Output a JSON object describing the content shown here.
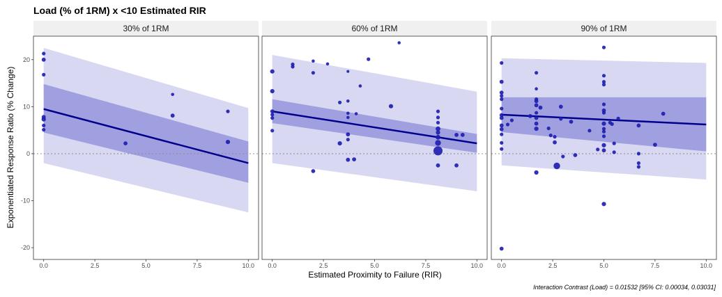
{
  "title": "Load (% of 1RM) x <10 Estimated RIR",
  "xlabel": "Estimated Proximity to Failure (RIR)",
  "ylabel": "Exponentiated Response Ratio (% Change)",
  "caption": "Interaction Contrast (Load) = 0.01532 [95% CI: 0.00034, 0.03031]",
  "colors": {
    "line": "#00008b",
    "points": "#1c1cb0",
    "band_inner": "#a0a0e0",
    "band_outer": "#d8d8f2",
    "strip_bg": "#f0f0f0",
    "zero_line": "#8c8c8c"
  },
  "chart_data": {
    "type": "scatter",
    "xlim": [
      -0.5,
      10.5
    ],
    "ylim": [
      -22.5,
      25
    ],
    "x_ticks": [
      0,
      2.5,
      5,
      7.5,
      10
    ],
    "x_tick_labels": [
      "0.0",
      "2.5",
      "5.0",
      "7.5",
      "10.0"
    ],
    "y_ticks": [
      20,
      10,
      0,
      -10,
      -20
    ],
    "y_tick_labels": [
      "20",
      "10",
      "0",
      "-10",
      "-20"
    ],
    "reference_line_y": 0,
    "panels": [
      {
        "strip": "30% of 1RM",
        "line": [
          [
            0,
            9.5
          ],
          [
            10,
            -2
          ]
        ],
        "inner_band": {
          "lower": [
            [
              0,
              4.5
            ],
            [
              10,
              -6.2
            ]
          ],
          "upper": [
            [
              0,
              14.8
            ],
            [
              10,
              2.6
            ]
          ]
        },
        "outer_band": {
          "lower": [
            [
              0,
              -2
            ],
            [
              10,
              -12.5
            ]
          ],
          "upper": [
            [
              0,
              22.5
            ],
            [
              10,
              9.7
            ]
          ]
        },
        "points": [
          {
            "x": 0,
            "y": 21.3,
            "s": 1
          },
          {
            "x": 0,
            "y": 20,
            "s": 1.1
          },
          {
            "x": 0,
            "y": 16.8,
            "s": 1
          },
          {
            "x": 0,
            "y": 7.8,
            "s": 1.1
          },
          {
            "x": 0,
            "y": 7.3,
            "s": 1.2
          },
          {
            "x": 0,
            "y": 6,
            "s": 1
          },
          {
            "x": 0,
            "y": 5.1,
            "s": 1
          },
          {
            "x": 4,
            "y": 2.2,
            "s": 1.1
          },
          {
            "x": 6.3,
            "y": 12.6,
            "s": 0.9
          },
          {
            "x": 6.3,
            "y": 8.1,
            "s": 1.1
          },
          {
            "x": 9,
            "y": 9,
            "s": 1
          },
          {
            "x": 9,
            "y": 2.5,
            "s": 1.2
          }
        ]
      },
      {
        "strip": "60% of 1RM",
        "line": [
          [
            0,
            9
          ],
          [
            10,
            2.2
          ]
        ],
        "inner_band": {
          "lower": [
            [
              0,
              6.5
            ],
            [
              10,
              0.2
            ]
          ],
          "upper": [
            [
              0,
              11.6
            ],
            [
              10,
              4.2
            ]
          ]
        },
        "outer_band": {
          "lower": [
            [
              0,
              -2
            ],
            [
              10,
              -8
            ]
          ],
          "upper": [
            [
              0,
              21
            ],
            [
              10,
              13.2
            ]
          ]
        },
        "points": [
          {
            "x": 0,
            "y": 17.5,
            "s": 1.2
          },
          {
            "x": 0,
            "y": 13.3,
            "s": 1.2
          },
          {
            "x": 0,
            "y": 9,
            "s": 1.1
          },
          {
            "x": 0,
            "y": 8.3,
            "s": 1
          },
          {
            "x": 0,
            "y": 7.6,
            "s": 1
          },
          {
            "x": 0,
            "y": 4.9,
            "s": 1
          },
          {
            "x": 1,
            "y": 19,
            "s": 1
          },
          {
            "x": 1,
            "y": 18.5,
            "s": 1
          },
          {
            "x": 2,
            "y": 19.7,
            "s": 0.9
          },
          {
            "x": 2,
            "y": 17.2,
            "s": 1
          },
          {
            "x": 2,
            "y": -3.7,
            "s": 1.1
          },
          {
            "x": 2.7,
            "y": 19.1,
            "s": 0.9
          },
          {
            "x": 3.3,
            "y": 10.9,
            "s": 1
          },
          {
            "x": 3.3,
            "y": 2.2,
            "s": 1.2
          },
          {
            "x": 3.7,
            "y": 17.5,
            "s": 0.8
          },
          {
            "x": 3.7,
            "y": 11.2,
            "s": 0.9
          },
          {
            "x": 3.7,
            "y": 8.6,
            "s": 0.9
          },
          {
            "x": 3.7,
            "y": 7.7,
            "s": 0.9
          },
          {
            "x": 3.7,
            "y": 4.1,
            "s": 1.1
          },
          {
            "x": 3.7,
            "y": 3,
            "s": 1
          },
          {
            "x": 3.7,
            "y": -1.3,
            "s": 1.1
          },
          {
            "x": 4,
            "y": -1.2,
            "s": 1.1
          },
          {
            "x": 4.1,
            "y": 8.5,
            "s": 0.9
          },
          {
            "x": 4.3,
            "y": 14.4,
            "s": 0.9
          },
          {
            "x": 4.7,
            "y": 20.1,
            "s": 1
          },
          {
            "x": 5.8,
            "y": 10.1,
            "s": 1.2
          },
          {
            "x": 6.2,
            "y": 23.6,
            "s": 0.9
          },
          {
            "x": 8.1,
            "y": 9,
            "s": 1
          },
          {
            "x": 8.1,
            "y": 7.7,
            "s": 1
          },
          {
            "x": 8.1,
            "y": 6.6,
            "s": 1
          },
          {
            "x": 8.1,
            "y": 5.3,
            "s": 1.3
          },
          {
            "x": 8.1,
            "y": 4.5,
            "s": 1.2
          },
          {
            "x": 8.1,
            "y": 3.5,
            "s": 1.3
          },
          {
            "x": 8.1,
            "y": 2.3,
            "s": 1.6
          },
          {
            "x": 8.1,
            "y": 0.6,
            "s": 2.5
          },
          {
            "x": 8.1,
            "y": -2.5,
            "s": 1.1
          },
          {
            "x": 9,
            "y": 4,
            "s": 1.1
          },
          {
            "x": 9.3,
            "y": 4,
            "s": 1.1
          },
          {
            "x": 9,
            "y": -2.5,
            "s": 1.1
          }
        ]
      },
      {
        "strip": "90% of 1RM",
        "line": [
          [
            0,
            8.3
          ],
          [
            10,
            6.2
          ]
        ],
        "inner_band": {
          "lower": [
            [
              0,
              4.6
            ],
            [
              10,
              0.5
            ]
          ],
          "upper": [
            [
              0,
              12
            ],
            [
              10,
              12
            ]
          ]
        },
        "outer_band": {
          "lower": [
            [
              0,
              -2.5
            ],
            [
              10,
              -5.5
            ]
          ],
          "upper": [
            [
              0,
              20.3
            ],
            [
              10,
              19.3
            ]
          ]
        },
        "points": [
          {
            "x": 0,
            "y": 19.3,
            "s": 1
          },
          {
            "x": 0,
            "y": 15.3,
            "s": 1.1
          },
          {
            "x": 0,
            "y": 13,
            "s": 1.1
          },
          {
            "x": 0,
            "y": 12.3,
            "s": 1
          },
          {
            "x": 0,
            "y": 11.6,
            "s": 1
          },
          {
            "x": 0,
            "y": 9.6,
            "s": 1
          },
          {
            "x": 0,
            "y": 8.2,
            "s": 1.1
          },
          {
            "x": 0,
            "y": 7.6,
            "s": 1.1
          },
          {
            "x": 0,
            "y": 6,
            "s": 1.1
          },
          {
            "x": 0,
            "y": 5.2,
            "s": 1.1
          },
          {
            "x": 0,
            "y": 4.1,
            "s": 1
          },
          {
            "x": 0,
            "y": 2.3,
            "s": 1
          },
          {
            "x": 0,
            "y": 1,
            "s": 1
          },
          {
            "x": 0,
            "y": -20.2,
            "s": 1.1
          },
          {
            "x": 0.3,
            "y": 6.2,
            "s": 1
          },
          {
            "x": 0.5,
            "y": 7.1,
            "s": 1
          },
          {
            "x": 1.4,
            "y": 8,
            "s": 1.1
          },
          {
            "x": 1.7,
            "y": 17.2,
            "s": 1
          },
          {
            "x": 1.7,
            "y": 13.8,
            "s": 0.9
          },
          {
            "x": 1.7,
            "y": 11.6,
            "s": 1
          },
          {
            "x": 1.7,
            "y": 11.2,
            "s": 1.1
          },
          {
            "x": 1.7,
            "y": 10.3,
            "s": 1.1
          },
          {
            "x": 1.7,
            "y": 8.7,
            "s": 1
          },
          {
            "x": 1.7,
            "y": 7.6,
            "s": 1.1
          },
          {
            "x": 1.7,
            "y": 6.4,
            "s": 1.1
          },
          {
            "x": 1.7,
            "y": 5.3,
            "s": 1.2
          },
          {
            "x": 1.7,
            "y": -4,
            "s": 1.2
          },
          {
            "x": 1.9,
            "y": 9.8,
            "s": 1.1
          },
          {
            "x": 2.3,
            "y": 5.4,
            "s": 1
          },
          {
            "x": 2.4,
            "y": 3.9,
            "s": 1
          },
          {
            "x": 2.6,
            "y": 3.6,
            "s": 1
          },
          {
            "x": 2.6,
            "y": 2.4,
            "s": 1.1
          },
          {
            "x": 2.7,
            "y": -2.6,
            "s": 1.8
          },
          {
            "x": 2.9,
            "y": 10,
            "s": 1.1
          },
          {
            "x": 2.9,
            "y": 7.4,
            "s": 1
          },
          {
            "x": 3,
            "y": -0.6,
            "s": 1
          },
          {
            "x": 3.4,
            "y": 6.8,
            "s": 1.1
          },
          {
            "x": 3.6,
            "y": -0.3,
            "s": 1.1
          },
          {
            "x": 4.3,
            "y": 4.9,
            "s": 1
          },
          {
            "x": 4.7,
            "y": 0.9,
            "s": 1
          },
          {
            "x": 5,
            "y": 22.6,
            "s": 1
          },
          {
            "x": 5,
            "y": 16.6,
            "s": 1
          },
          {
            "x": 5,
            "y": 15.3,
            "s": 1
          },
          {
            "x": 5,
            "y": 14.7,
            "s": 1
          },
          {
            "x": 5,
            "y": 10.5,
            "s": 1
          },
          {
            "x": 5,
            "y": 9.2,
            "s": 1.1
          },
          {
            "x": 5,
            "y": 8.7,
            "s": 1
          },
          {
            "x": 5,
            "y": 6.4,
            "s": 1.2
          },
          {
            "x": 5,
            "y": 5.3,
            "s": 1
          },
          {
            "x": 5,
            "y": 4.7,
            "s": 1
          },
          {
            "x": 5,
            "y": 3.7,
            "s": 1
          },
          {
            "x": 5,
            "y": 1.8,
            "s": 1.2
          },
          {
            "x": 5,
            "y": 0.7,
            "s": 1.1
          },
          {
            "x": 5,
            "y": -10.7,
            "s": 1.2
          },
          {
            "x": 5.3,
            "y": 6.6,
            "s": 1
          },
          {
            "x": 5.4,
            "y": 6.3,
            "s": 1
          },
          {
            "x": 5.5,
            "y": 2.2,
            "s": 1
          },
          {
            "x": 5.5,
            "y": 0.3,
            "s": 1
          },
          {
            "x": 5.7,
            "y": 7.5,
            "s": 1
          },
          {
            "x": 6.7,
            "y": 6,
            "s": 1.1
          },
          {
            "x": 6.7,
            "y": 0,
            "s": 1
          },
          {
            "x": 6.7,
            "y": -2,
            "s": 1
          },
          {
            "x": 6.7,
            "y": -2.8,
            "s": 1
          },
          {
            "x": 7.5,
            "y": 1.9,
            "s": 1.1
          },
          {
            "x": 7.9,
            "y": 8.5,
            "s": 1.1
          }
        ]
      }
    ]
  }
}
